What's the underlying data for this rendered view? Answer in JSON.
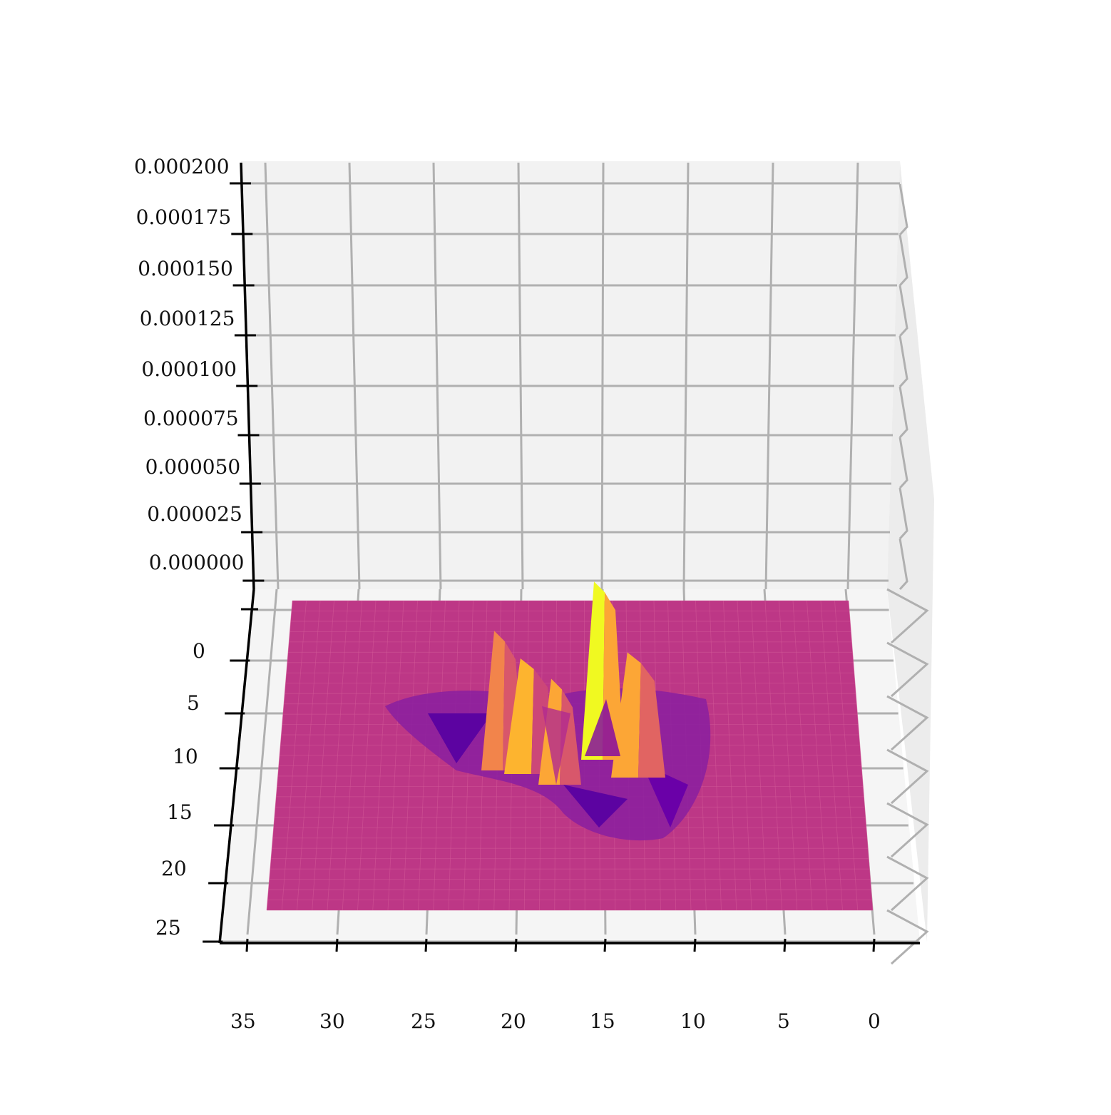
{
  "chart_data": {
    "type": "surface",
    "title": "",
    "xlabel": "",
    "ylabel": "",
    "zlabel": "",
    "colormap": "plasma",
    "x_ticks": [
      "35",
      "30",
      "25",
      "20",
      "15",
      "10",
      "5",
      "0"
    ],
    "y_ticks": [
      "0",
      "5",
      "10",
      "15",
      "20",
      "25"
    ],
    "z_ticks": [
      "0.000200",
      "0.000175",
      "0.000150",
      "0.000125",
      "0.000100",
      "0.000075",
      "0.000050",
      "0.000025",
      "0.000000"
    ],
    "xlim": [
      0,
      35
    ],
    "ylim": [
      0,
      25
    ],
    "zlim": [
      0,
      0.0002
    ],
    "baseline_value": 0.0,
    "grid": true,
    "pane_color": "#f2f2f2",
    "grid_color": "#b0b0b0",
    "surface_base_color": "#bd3786",
    "features": [
      {
        "x": 13.5,
        "y": 8.5,
        "value": 0.000185
      },
      {
        "x": 10.5,
        "y": 13.5,
        "value": 0.00013
      },
      {
        "x": 19.0,
        "y": 7.0,
        "value": 0.000145
      },
      {
        "x": 21.0,
        "y": 8.5,
        "value": 0.00012
      },
      {
        "x": 16.5,
        "y": 11.0,
        "value": 0.00011
      },
      {
        "x": 12.0,
        "y": 15.5,
        "value": -2e-05
      },
      {
        "x": 24.0,
        "y": 11.0,
        "value": -1.5e-05
      },
      {
        "x": 15.5,
        "y": 16.5,
        "value": -2e-05
      }
    ]
  }
}
